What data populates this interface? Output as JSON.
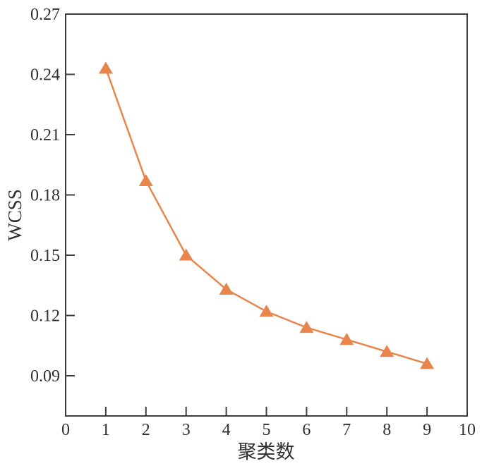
{
  "chart_data": {
    "type": "line",
    "title": "",
    "xlabel": "聚类数",
    "ylabel": "WCSS",
    "x": [
      1,
      2,
      3,
      4,
      5,
      6,
      7,
      8,
      9
    ],
    "y": [
      0.243,
      0.187,
      0.15,
      0.133,
      0.122,
      0.114,
      0.108,
      0.102,
      0.096
    ],
    "series_name": "WCSS",
    "xlim": [
      0,
      10
    ],
    "ylim": [
      0.07,
      0.27
    ],
    "xticks": [
      0,
      1,
      2,
      3,
      4,
      5,
      6,
      7,
      8,
      9,
      10
    ],
    "yticks": [
      0.09,
      0.12,
      0.15,
      0.18,
      0.21,
      0.24,
      0.27
    ],
    "ytick_decimals": 2,
    "grid": false,
    "legend_position": "none",
    "marker": "triangle-up",
    "line_color": "#e8854d",
    "marker_color": "#e8854d",
    "axis_color": "#3d3d3d",
    "label_color": "#2f2f2f"
  }
}
